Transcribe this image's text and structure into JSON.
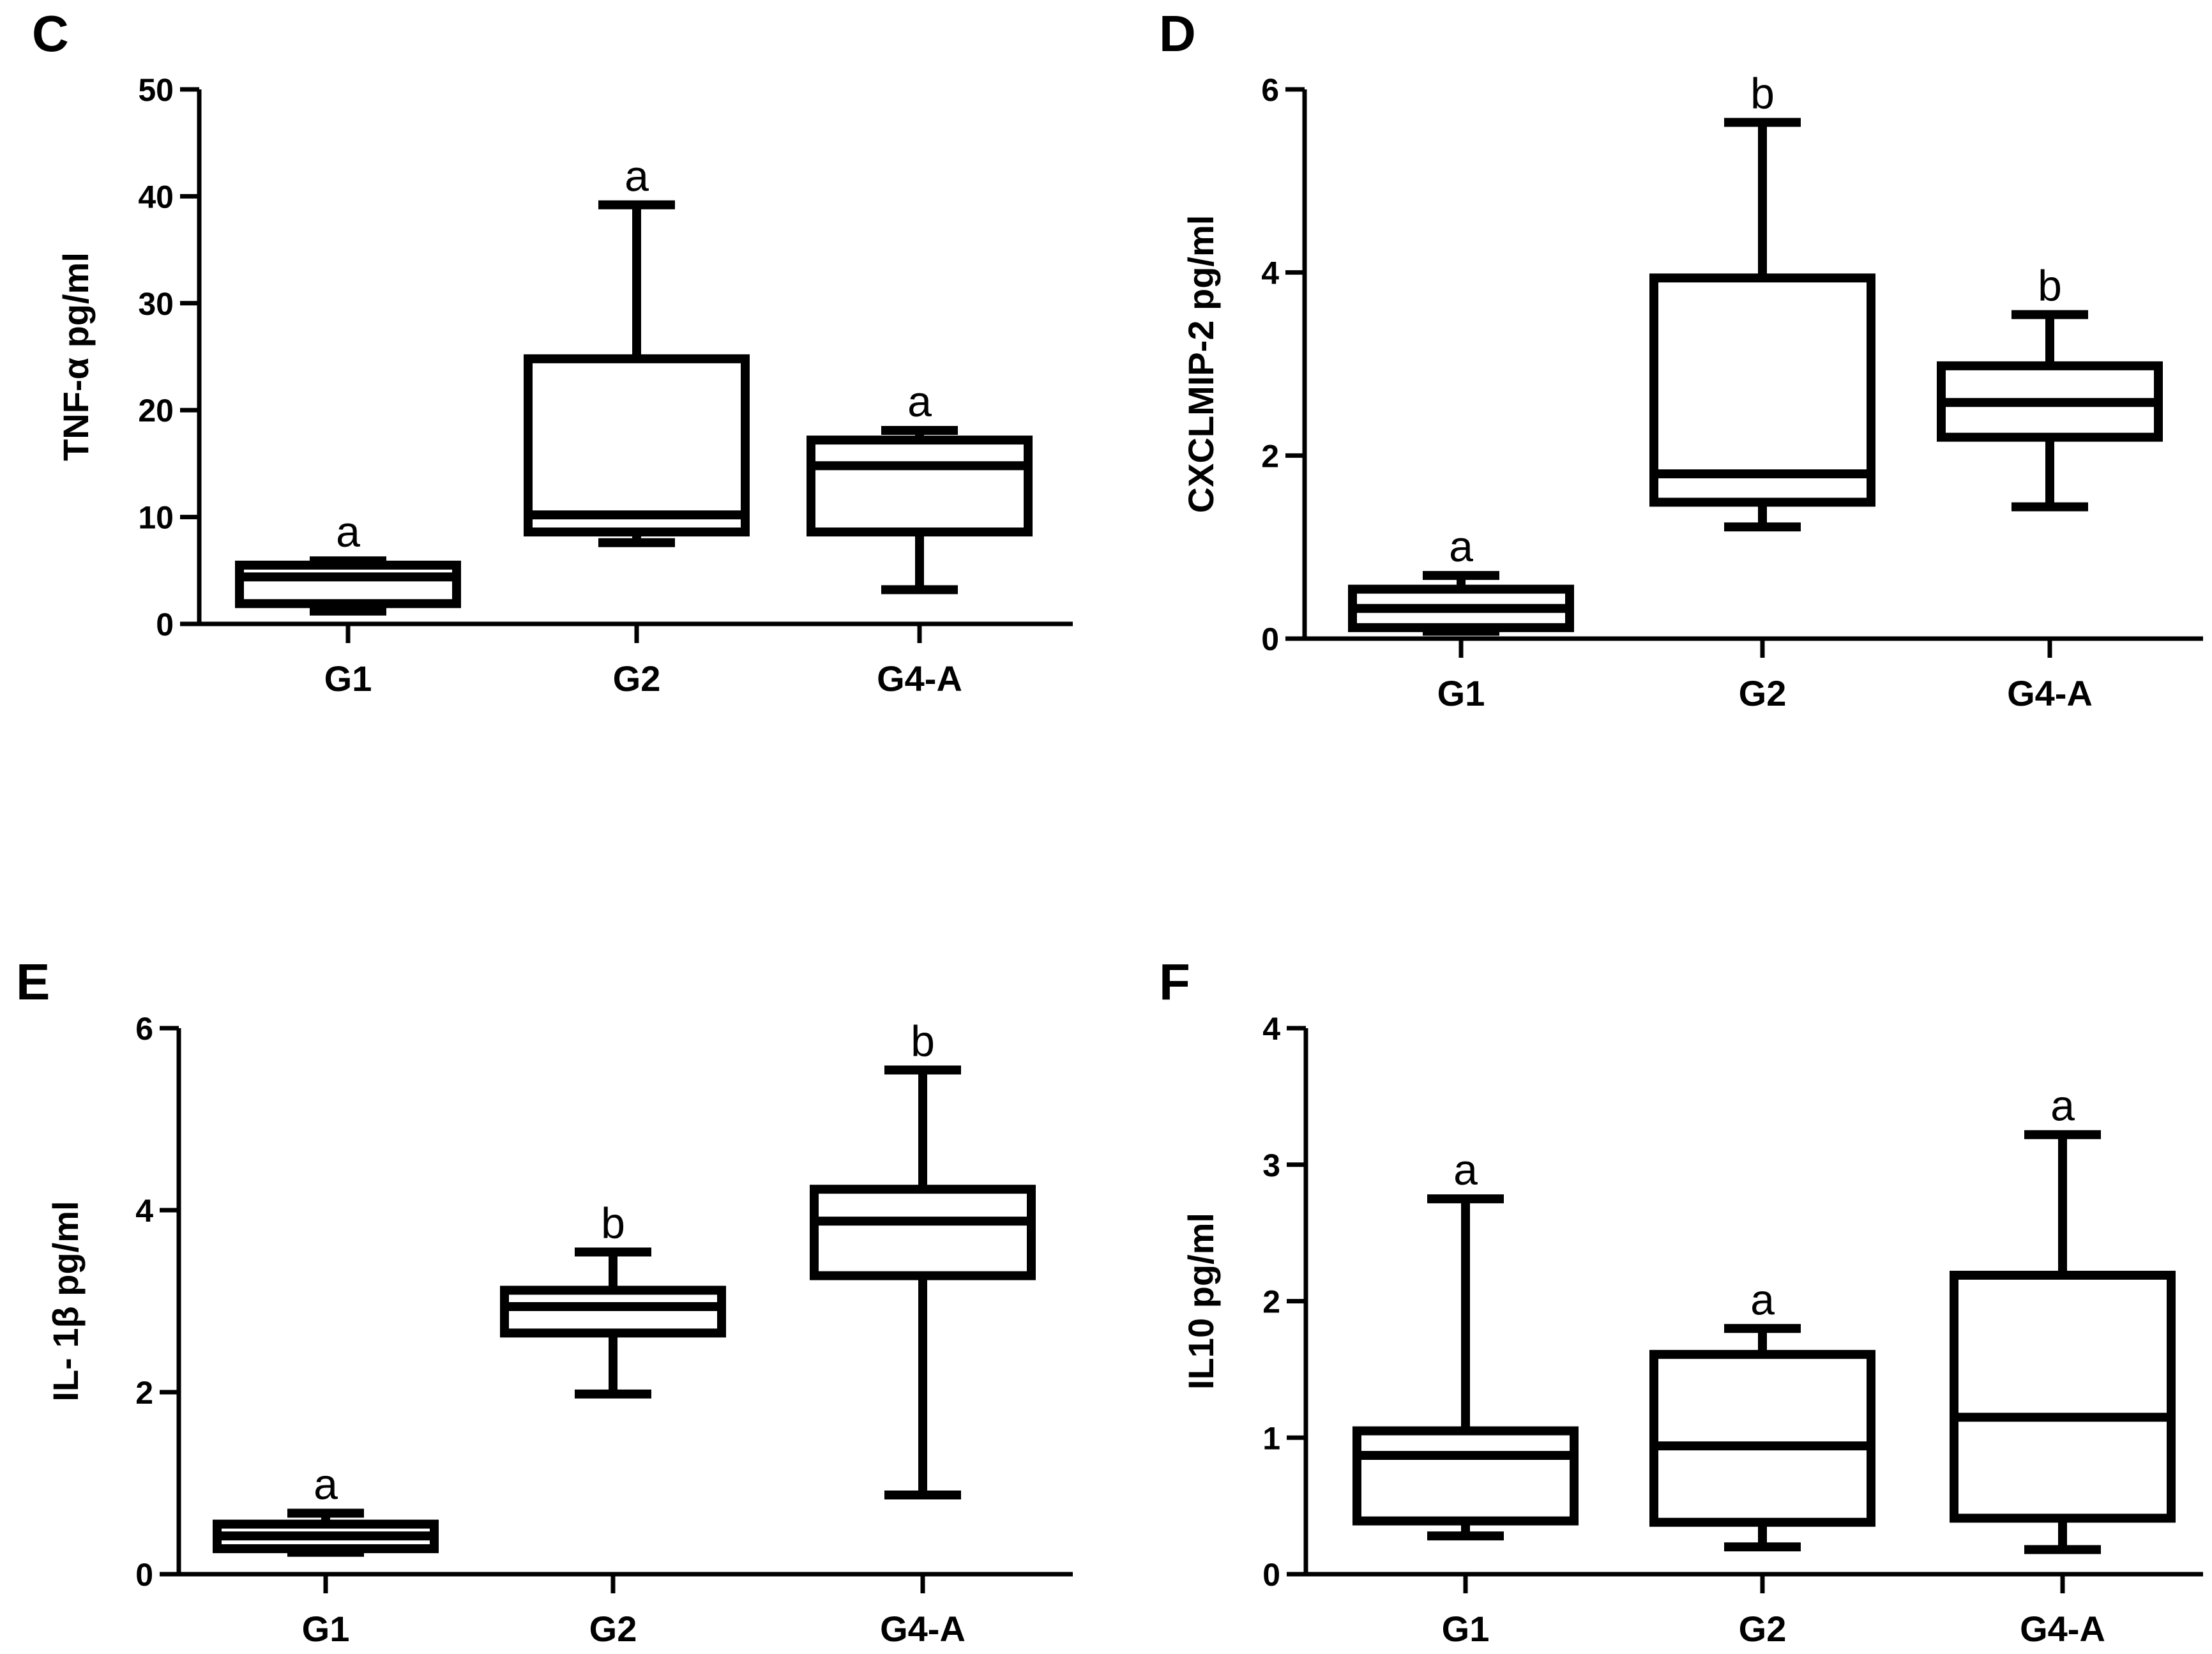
{
  "chart_data": [
    {
      "type": "box",
      "panel": "C",
      "ylabel": "TNF-α pg/ml",
      "ylim": [
        0,
        50
      ],
      "yticks": [
        0,
        10,
        20,
        30,
        40,
        50
      ],
      "categories": [
        "G1",
        "G2",
        "G4-A"
      ],
      "boxes": [
        {
          "name": "G1",
          "min": 1.2,
          "q1": 1.9,
          "median": 4.4,
          "q3": 5.5,
          "max": 5.9,
          "sig": "a"
        },
        {
          "name": "G2",
          "min": 7.6,
          "q1": 8.6,
          "median": 10.2,
          "q3": 24.8,
          "max": 39.2,
          "sig": "a"
        },
        {
          "name": "G4-A",
          "min": 3.2,
          "q1": 8.6,
          "median": 14.8,
          "q3": 17.2,
          "max": 18.1,
          "sig": "a"
        }
      ]
    },
    {
      "type": "box",
      "panel": "D",
      "ylabel": "CXCLMIP-2 pg/ml",
      "ylim": [
        0,
        6
      ],
      "yticks": [
        0,
        2,
        4,
        6
      ],
      "categories": [
        "G1",
        "G2",
        "G4-A"
      ],
      "boxes": [
        {
          "name": "G1",
          "min": 0.08,
          "q1": 0.12,
          "median": 0.33,
          "q3": 0.54,
          "max": 0.69,
          "sig": "a"
        },
        {
          "name": "G2",
          "min": 1.22,
          "q1": 1.49,
          "median": 1.8,
          "q3": 3.94,
          "max": 5.64,
          "sig": "b"
        },
        {
          "name": "G4-A",
          "min": 1.44,
          "q1": 2.2,
          "median": 2.58,
          "q3": 2.98,
          "max": 3.54,
          "sig": "b"
        }
      ]
    },
    {
      "type": "box",
      "panel": "E",
      "ylabel": "IL- 1β pg/ml",
      "ylim": [
        0,
        6
      ],
      "yticks": [
        0,
        2,
        4,
        6
      ],
      "categories": [
        "G1",
        "G2",
        "G4-A"
      ],
      "boxes": [
        {
          "name": "G1",
          "min": 0.24,
          "q1": 0.28,
          "median": 0.42,
          "q3": 0.55,
          "max": 0.67,
          "sig": "a"
        },
        {
          "name": "G2",
          "min": 1.98,
          "q1": 2.65,
          "median": 2.94,
          "q3": 3.12,
          "max": 3.54,
          "sig": "b"
        },
        {
          "name": "G4-A",
          "min": 0.87,
          "q1": 3.28,
          "median": 3.88,
          "q3": 4.23,
          "max": 5.54,
          "sig": "b"
        }
      ]
    },
    {
      "type": "box",
      "panel": "F",
      "ylabel": "IL10 pg/ml",
      "ylim": [
        0,
        4
      ],
      "yticks": [
        0,
        1,
        2,
        3,
        4
      ],
      "categories": [
        "G1",
        "G2",
        "G4-A"
      ],
      "boxes": [
        {
          "name": "G1",
          "min": 0.28,
          "q1": 0.39,
          "median": 0.87,
          "q3": 1.05,
          "max": 2.75,
          "sig": "a"
        },
        {
          "name": "G2",
          "min": 0.2,
          "q1": 0.38,
          "median": 0.94,
          "q3": 1.61,
          "max": 1.8,
          "sig": "a"
        },
        {
          "name": "G4-A",
          "min": 0.18,
          "q1": 0.41,
          "median": 1.15,
          "q3": 2.19,
          "max": 3.22,
          "sig": "a"
        }
      ]
    }
  ]
}
